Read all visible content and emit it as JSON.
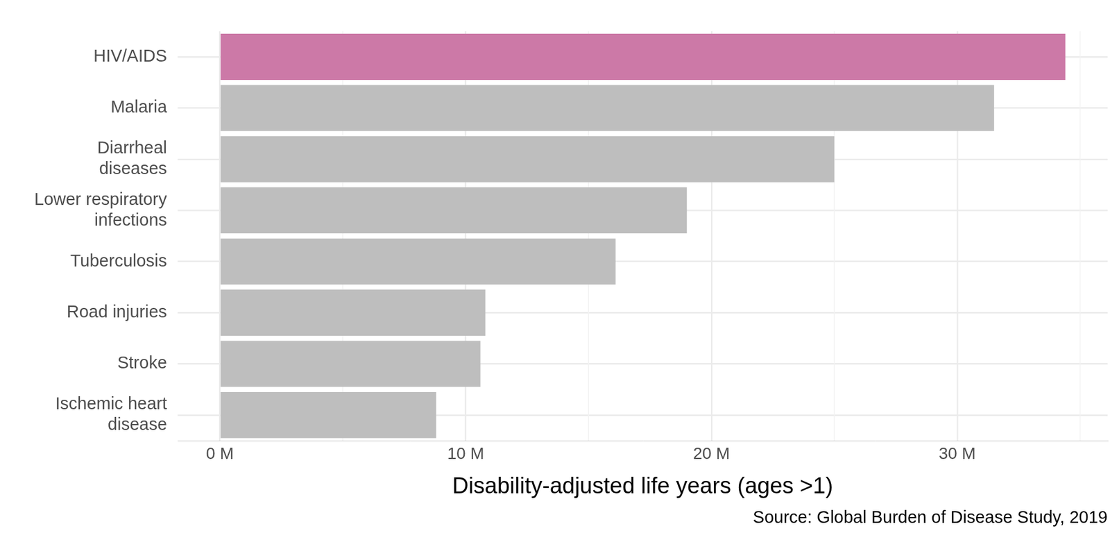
{
  "chart_data": {
    "type": "bar",
    "orientation": "horizontal",
    "categories": [
      "HIV/AIDS",
      "Malaria",
      "Diarrheal diseases",
      "Lower respiratory infections",
      "Tuberculosis",
      "Road injuries",
      "Stroke",
      "Ischemic heart disease"
    ],
    "values": [
      34.4,
      31.5,
      25.0,
      19.0,
      16.1,
      10.8,
      10.6,
      8.8
    ],
    "colors": [
      "#cc79a7",
      "#bebebe",
      "#bebebe",
      "#bebebe",
      "#bebebe",
      "#bebebe",
      "#bebebe",
      "#bebebe"
    ],
    "xlabel": "Disability-adjusted life years (ages >1)",
    "caption": "Source: Global Burden of Disease Study, 2019",
    "xlim": [
      -1.72,
      36.12
    ],
    "xticks": [
      {
        "value": 0,
        "label": "0 M"
      },
      {
        "value": 10,
        "label": "10 M"
      },
      {
        "value": 20,
        "label": "20 M"
      },
      {
        "value": 30,
        "label": "30 M"
      }
    ],
    "grid": true
  }
}
